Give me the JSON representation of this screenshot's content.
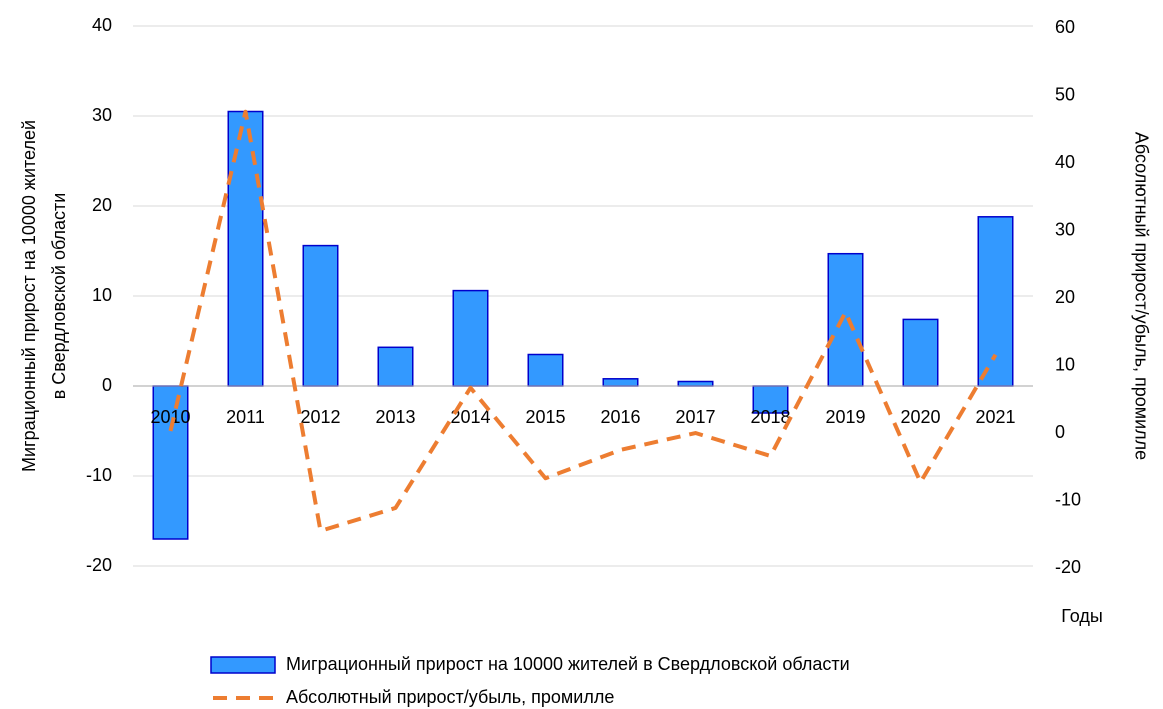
{
  "chart_data": {
    "type": "bar_line",
    "y_label": [
      "Миграционный прирост на 10000 жителей",
      "в Свердловской области"
    ],
    "y2_label": "Абсолютный прирост/убыль, промилле",
    "x_label": "Годы",
    "categories": [
      "2010",
      "2011",
      "2012",
      "2013",
      "2014",
      "2015",
      "2016",
      "2017",
      "2018",
      "2019",
      "2020",
      "2021"
    ],
    "series": [
      {
        "name": "Миграционный прирост на 10000 жителей в Свердловской области",
        "type": "bar",
        "color": "#3399ff",
        "edge_color": "#0000cc",
        "axis": "y",
        "values": [
          -17,
          30.5,
          15.6,
          4.3,
          10.6,
          3.5,
          0.8,
          0.5,
          -3,
          14.7,
          7.4,
          18.8
        ]
      },
      {
        "name": "Абсолютный прирост/убыль, промилле",
        "type": "line",
        "color": "#ed7d31",
        "dashed": true,
        "axis": "y2",
        "values": [
          0,
          47.3,
          -14.8,
          -11.4,
          6.4,
          -7,
          -2.8,
          -0.3,
          -3.7,
          17.6,
          -7.6,
          11.3
        ]
      }
    ],
    "ylim": [
      -20,
      40
    ],
    "yticks": [
      -20,
      -10,
      0,
      10,
      20,
      30,
      40
    ],
    "y2lim": [
      -20,
      60
    ],
    "y2ticks": [
      -20,
      -10,
      0,
      10,
      20,
      30,
      40,
      50,
      60
    ],
    "grid": true,
    "legend": "bottom"
  }
}
